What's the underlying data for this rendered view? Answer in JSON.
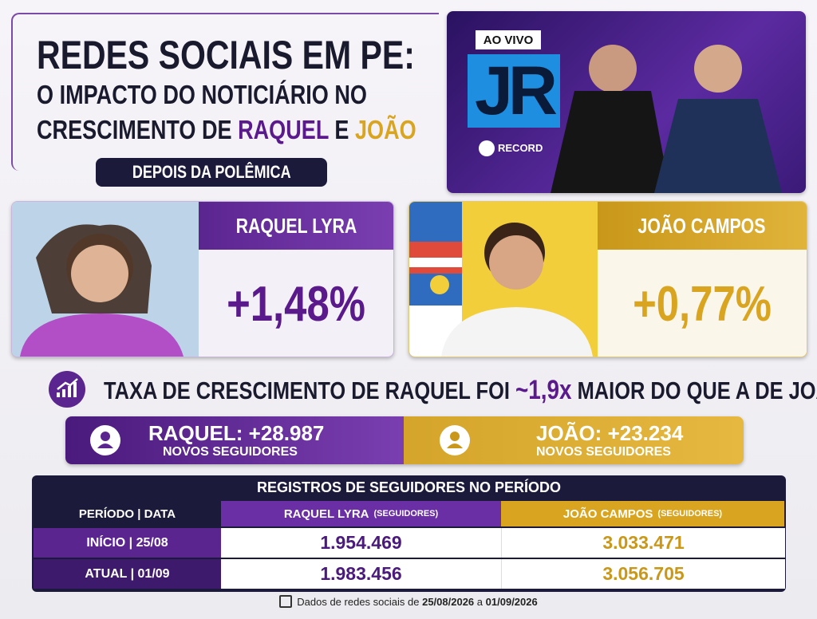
{
  "header": {
    "title": "REDES SOCIAIS EM PE:",
    "subtitle_line1": "O IMPACTO DO NOTICIÁRIO NO",
    "subtitle_line2": [
      "CRESCIMENTO DE",
      "RAQUEL",
      "E",
      "JOÃO"
    ],
    "badge": "DEPOIS DA POLÊMICA"
  },
  "broadcast": {
    "live": "AO VIVO",
    "logo": "JR",
    "network": "RECORD"
  },
  "candidates": [
    {
      "name": "RAQUEL LYRA",
      "growth": "+1,48%"
    },
    {
      "name": "JOÃO CAMPOS",
      "growth": "+0,77%"
    }
  ],
  "headline": [
    "TAXA DE CRESCIMENTO DE RAQUEL FOI",
    "~1,9x",
    "MAIOR DO QUE A DE JOÃO"
  ],
  "followers": [
    {
      "label": "RAQUEL: +28.987",
      "sub": "NOVOS SEGUIDORES"
    },
    {
      "label": "JOÃO: +23.234",
      "sub": "NOVOS SEGUIDORES"
    }
  ],
  "table": {
    "title": "REGISTROS DE SEGUIDORES NO PERÍODO",
    "header": [
      {
        "main": "PERÍODO | DATA"
      },
      {
        "main": "RAQUEL LYRA",
        "note": "(SEGUIDORES)"
      },
      {
        "main": "JOÃO CAMPOS",
        "note": "(SEGUIDORES)"
      }
    ],
    "rows": [
      [
        "INÍCIO | 25/08",
        "1.954.469",
        "3.033.471"
      ],
      [
        "ATUAL | 01/09",
        "1.983.456",
        "3.056.705"
      ]
    ]
  },
  "footer": [
    "Dados de redes sociais de",
    "25/08/2026",
    "a",
    "01/09/2026"
  ]
}
